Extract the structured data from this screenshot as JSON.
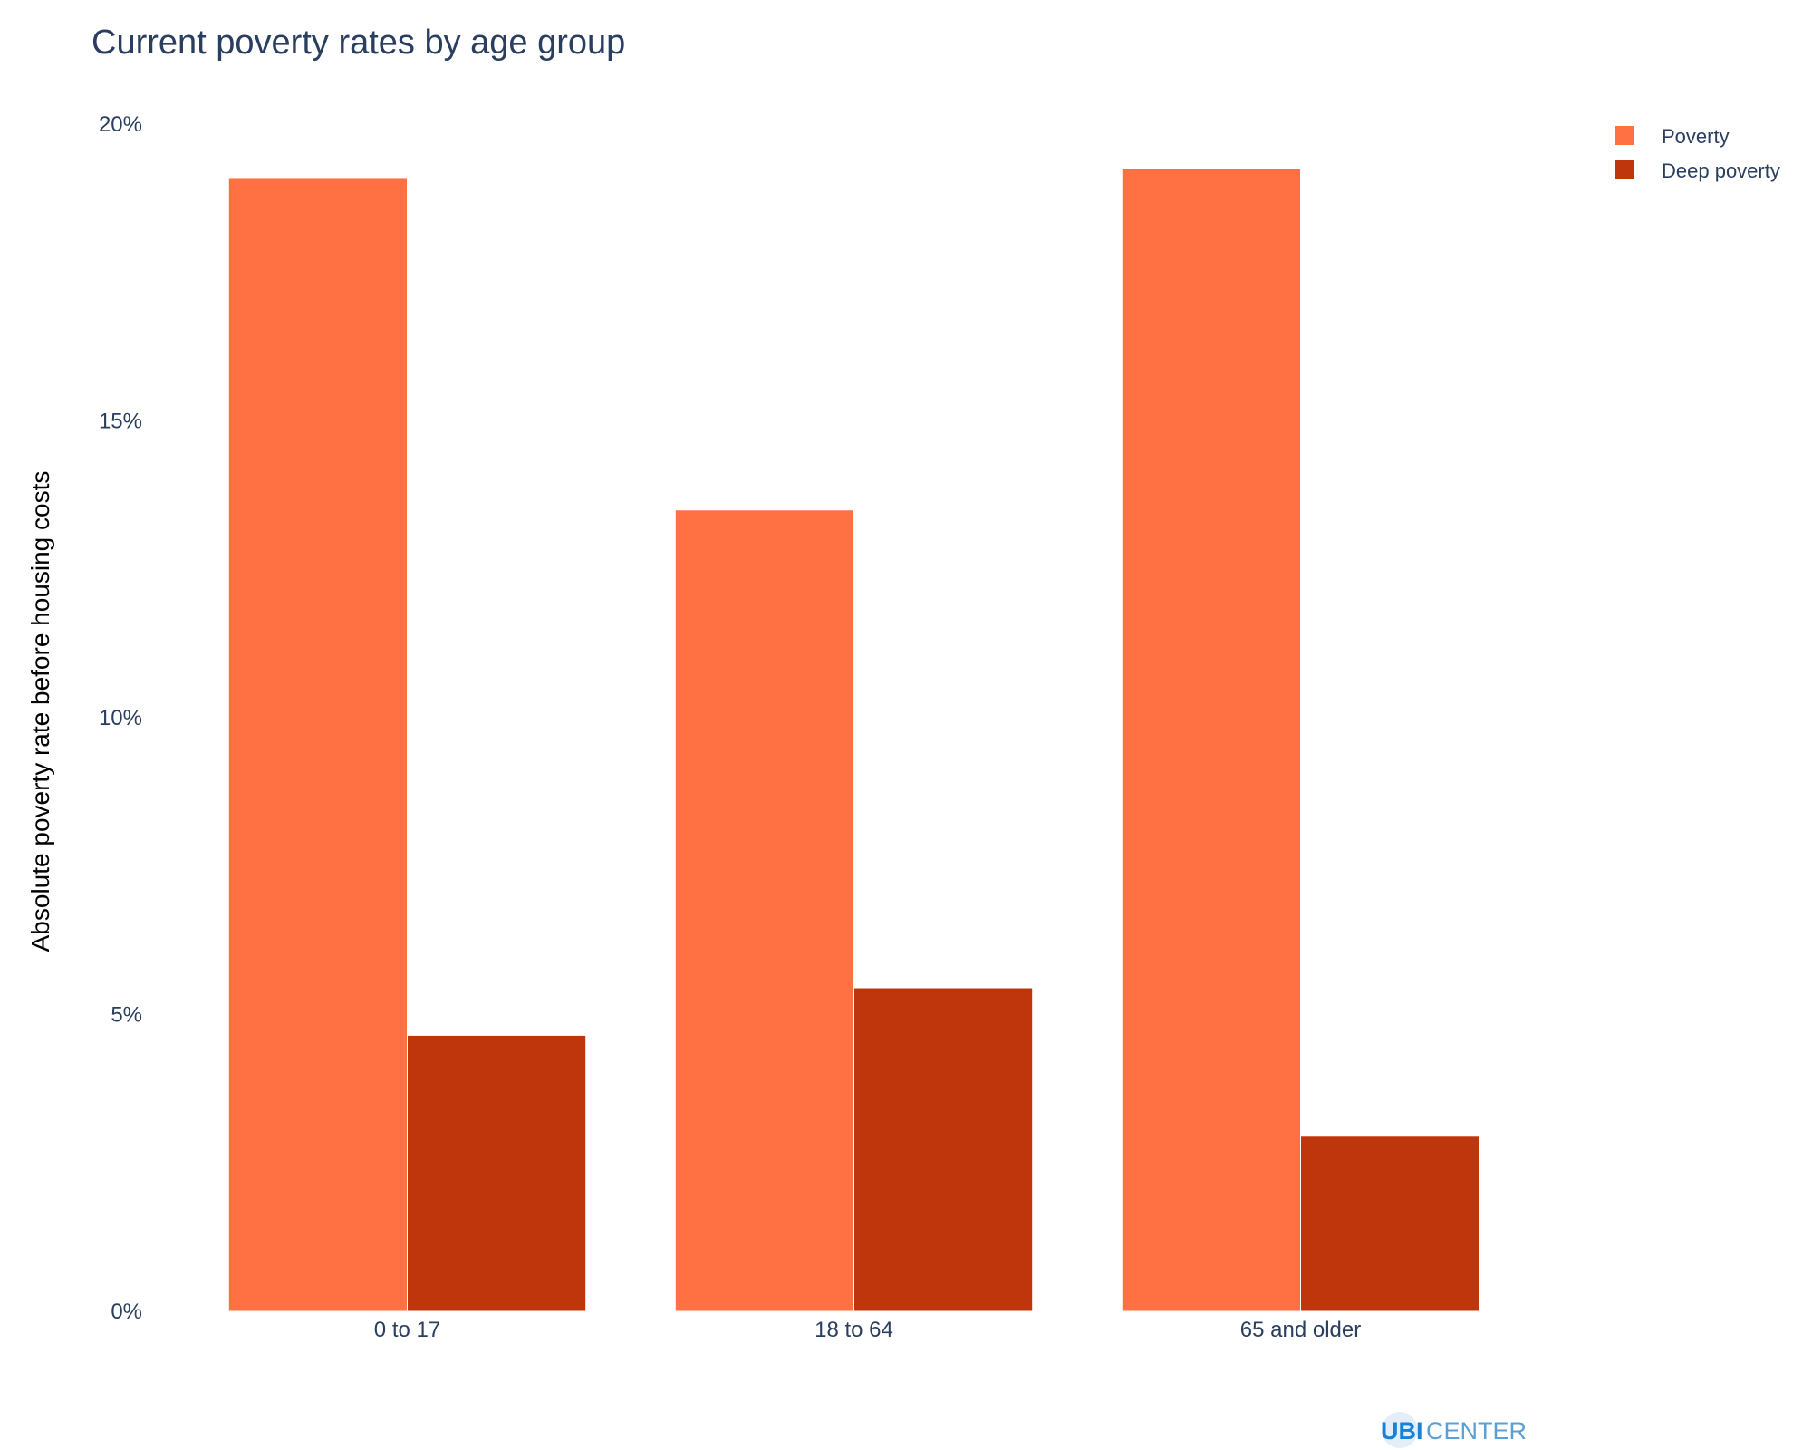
{
  "chart_data": {
    "type": "bar",
    "title": "Current poverty rates by age group",
    "xlabel": "",
    "ylabel": "Absolute poverty rate before housing costs",
    "categories": [
      "0 to 17",
      "18 to 64",
      "65 and older"
    ],
    "series": [
      {
        "name": "Poverty",
        "values": [
          19.1,
          13.5,
          19.25
        ]
      },
      {
        "name": "Deep poverty",
        "values": [
          4.65,
          5.45,
          2.95
        ]
      }
    ],
    "ylim": [
      0,
      20
    ],
    "yticks": [
      0,
      5,
      10,
      15,
      20
    ],
    "ytick_labels": [
      "0%",
      "5%",
      "10%",
      "15%",
      "20%"
    ],
    "grid": false,
    "legend_position": "top-right"
  },
  "colors": {
    "Poverty": "#ff7043",
    "Deep poverty": "#bf360c"
  },
  "logo": {
    "part1": "UBI",
    "part2": "CENTER"
  }
}
